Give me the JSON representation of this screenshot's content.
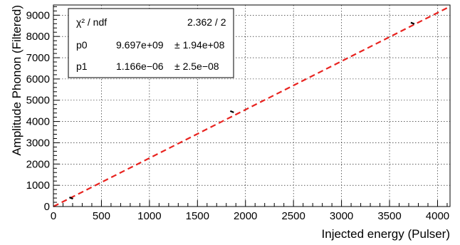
{
  "chart_data": {
    "type": "scatter",
    "title": "",
    "xlabel": "Injected energy (Pulser)",
    "ylabel": "Amplitude Phonon (Filtered)",
    "xlim": [
      0,
      4130
    ],
    "ylim": [
      0,
      9480
    ],
    "grid": true,
    "x_ticks": [
      0,
      500,
      1000,
      1500,
      2000,
      2500,
      3000,
      3500,
      4000
    ],
    "y_ticks": [
      0,
      1000,
      2000,
      3000,
      4000,
      5000,
      6000,
      7000,
      8000,
      9000
    ],
    "series": [
      {
        "type": "scatter",
        "color": "#000000",
        "points": [
          {
            "x": 185,
            "y": 400
          },
          {
            "x": 1860,
            "y": 4460
          },
          {
            "x": 3740,
            "y": 8620
          }
        ]
      }
    ],
    "fit": {
      "type": "line",
      "style": "dashed",
      "color": "#e8231f",
      "x_range": [
        0,
        4130
      ],
      "y_range": [
        0,
        9410
      ]
    },
    "stats_box": {
      "rows": [
        {
          "name": "χ² / ndf",
          "value": "2.362 / 2"
        },
        {
          "name": "p0",
          "value": "9.697e+09",
          "error": "± 1.94e+08"
        },
        {
          "name": "p1",
          "value": "1.166e−06",
          "error": "± 2.5e−08"
        }
      ]
    }
  }
}
